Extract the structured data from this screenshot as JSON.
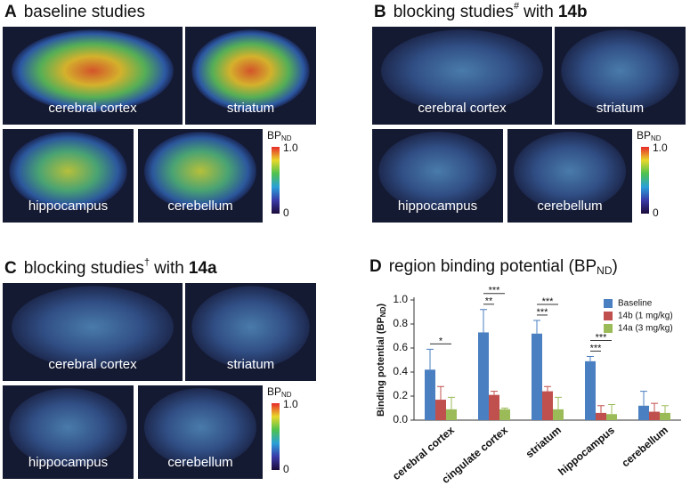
{
  "panels": [
    {
      "letter": "A",
      "title": "baseline studies",
      "regions": [
        "cerebral cortex",
        "striatum",
        "hippocampus",
        "cerebellum"
      ],
      "colorbar": {
        "label": "BP",
        "label_sub": "ND",
        "max": "1.0",
        "min": "0"
      }
    },
    {
      "letter": "B",
      "title": "blocking studies",
      "title_sup": "#",
      "title_mid": "with",
      "compound": "14b",
      "regions": [
        "cerebral cortex",
        "striatum",
        "hippocampus",
        "cerebellum"
      ],
      "colorbar": {
        "label": "BP",
        "label_sub": "ND",
        "max": "1.0",
        "min": "0"
      }
    },
    {
      "letter": "C",
      "title": "blocking studies",
      "title_sup": "†",
      "title_mid": "with",
      "compound": "14a",
      "regions": [
        "cerebral cortex",
        "striatum",
        "hippocampus",
        "cerebellum"
      ],
      "colorbar": {
        "label": "BP",
        "label_sub": "ND",
        "max": "1.0",
        "min": "0"
      }
    }
  ],
  "chart_data": {
    "type": "bar",
    "letter": "D",
    "title": "region binding potential (BP",
    "title_sub": "ND",
    "title_end": ")",
    "y_label": "Binding potential (BP",
    "y_label_sub": "ND",
    "y_label_end": ")",
    "categories": [
      "cerebral cortex",
      "cingulate cortex",
      "striatum",
      "hippocampus",
      "cerebellum"
    ],
    "series": [
      {
        "name": "Baseline",
        "color": "#4a7fc1",
        "values": [
          0.42,
          0.73,
          0.72,
          0.49,
          0.12
        ],
        "errors": [
          0.17,
          0.19,
          0.11,
          0.04,
          0.12
        ]
      },
      {
        "name": "14b (1 mg/kg)",
        "color": "#c0504d",
        "values": [
          0.17,
          0.21,
          0.24,
          0.06,
          0.07
        ],
        "errors": [
          0.11,
          0.03,
          0.04,
          0.06,
          0.07
        ]
      },
      {
        "name": "14a (3 mg/kg)",
        "color": "#9bbb59",
        "values": [
          0.09,
          0.09,
          0.09,
          0.05,
          0.06
        ],
        "errors": [
          0.1,
          0.01,
          0.1,
          0.08,
          0.06
        ]
      }
    ],
    "annotations": [
      {
        "category": 0,
        "from": 0,
        "to": 2,
        "text": "*"
      },
      {
        "category": 1,
        "from": 0,
        "to": 1,
        "text": "**"
      },
      {
        "category": 1,
        "from": 0,
        "to": 2,
        "text": "***"
      },
      {
        "category": 2,
        "from": 0,
        "to": 1,
        "text": "***"
      },
      {
        "category": 2,
        "from": 0,
        "to": 2,
        "text": "***"
      },
      {
        "category": 3,
        "from": 0,
        "to": 1,
        "text": "***"
      },
      {
        "category": 3,
        "from": 0,
        "to": 2,
        "text": "***"
      }
    ],
    "ylim": [
      0,
      1.0
    ],
    "yticks": [
      {
        "value": 0,
        "label": "0.0"
      },
      0.2,
      0.4,
      0.6,
      0.8,
      {
        "value": 1.0,
        "label": "1.0"
      }
    ]
  }
}
